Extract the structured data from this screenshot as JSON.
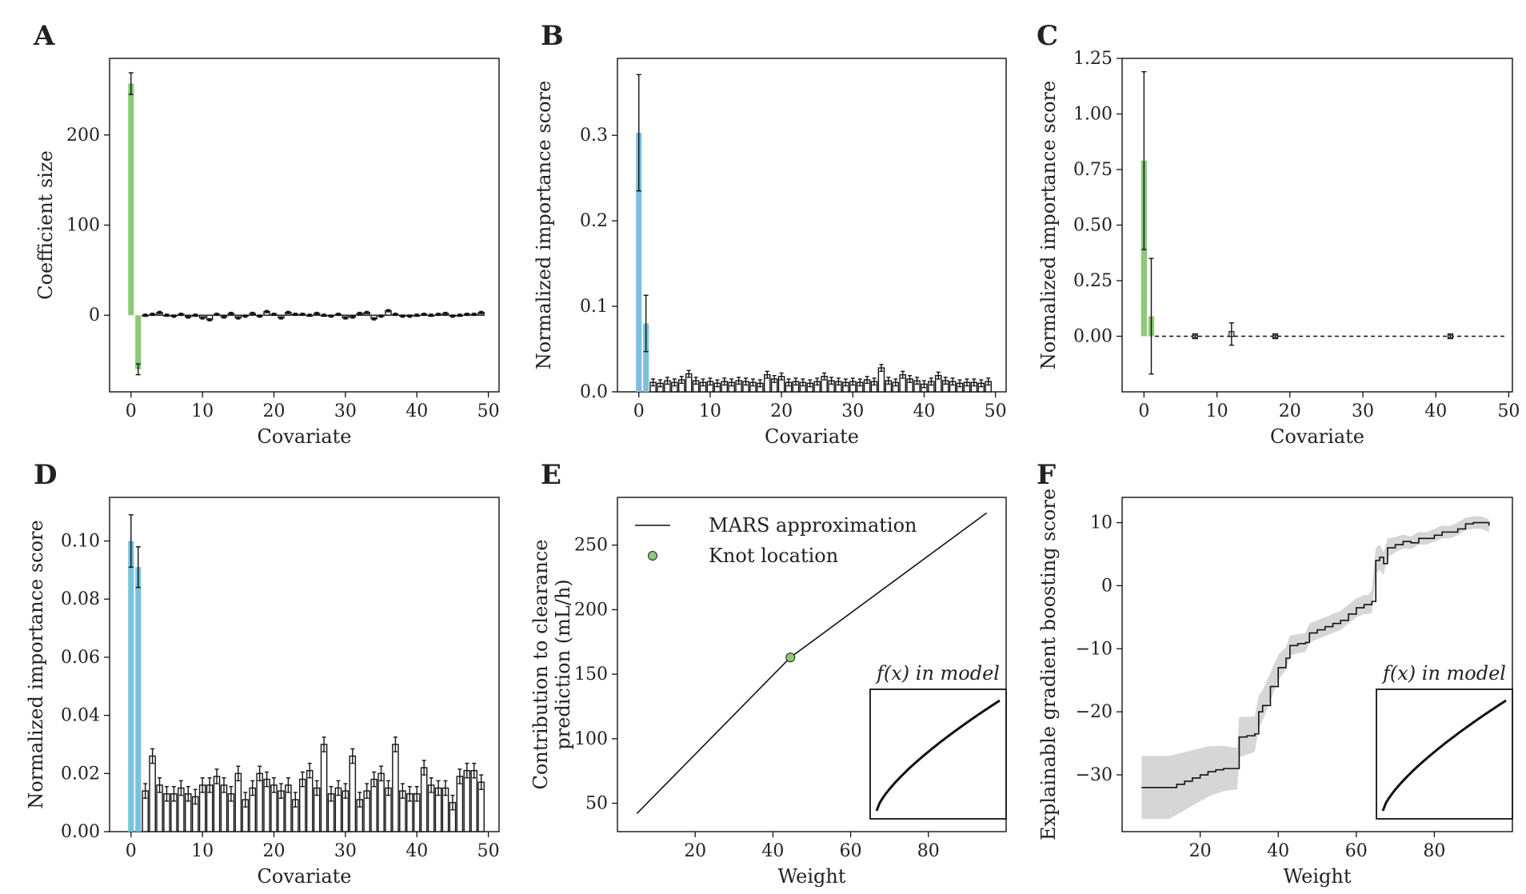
{
  "colors": {
    "green": "#8cc97a",
    "blue": "#7ac1dc",
    "ink": "#111111",
    "band": "#d6d6d6"
  },
  "inset_label": "f(x) in model",
  "chart_data": [
    {
      "panel": "A",
      "type": "bar",
      "xlabel": "Covariate",
      "ylabel": "Coefficient size",
      "xlim": [
        -3,
        51.5
      ],
      "ylim": [
        -85,
        285
      ],
      "xticks": [
        0,
        10,
        20,
        30,
        40,
        50
      ],
      "yticks": [
        0,
        100,
        200
      ],
      "highlight_color": "green",
      "highlight": [
        {
          "x": 0,
          "value": 257,
          "err": 12
        },
        {
          "x": 1,
          "value": -60,
          "err": 6
        }
      ],
      "values": [
        0,
        1,
        3,
        0,
        -1,
        1,
        -2,
        0,
        -3,
        -5,
        1,
        -2,
        2,
        -3,
        -1,
        2,
        -1,
        4,
        1,
        -3,
        3,
        1,
        1,
        0,
        2,
        0,
        -1,
        1,
        -3,
        -2,
        2,
        3,
        -4,
        -1,
        5,
        1,
        -1,
        -1,
        0,
        1,
        0,
        1,
        2,
        -1,
        0,
        1,
        1,
        3
      ],
      "errors": 1.2
    },
    {
      "panel": "B",
      "type": "bar",
      "xlabel": "Covariate",
      "ylabel": "Normalized importance score",
      "xlim": [
        -3,
        51.5
      ],
      "ylim": [
        0,
        0.39
      ],
      "xticks": [
        0,
        10,
        20,
        30,
        40,
        50
      ],
      "yticks": [
        0.0,
        0.1,
        0.2,
        0.3
      ],
      "ytick_decimals": 1,
      "highlight_color": "blue",
      "highlight": [
        {
          "x": 0,
          "value": 0.303,
          "err": 0.068
        },
        {
          "x": 1,
          "value": 0.08,
          "err": 0.033
        }
      ],
      "values": [
        0.011,
        0.01,
        0.013,
        0.011,
        0.014,
        0.021,
        0.013,
        0.011,
        0.012,
        0.01,
        0.012,
        0.011,
        0.013,
        0.012,
        0.011,
        0.01,
        0.02,
        0.015,
        0.018,
        0.011,
        0.012,
        0.011,
        0.01,
        0.012,
        0.018,
        0.013,
        0.012,
        0.011,
        0.012,
        0.011,
        0.014,
        0.012,
        0.028,
        0.013,
        0.011,
        0.02,
        0.015,
        0.013,
        0.009,
        0.012,
        0.019,
        0.013,
        0.012,
        0.01,
        0.011,
        0.011,
        0.01,
        0.012
      ],
      "errors": 0.004
    },
    {
      "panel": "C",
      "type": "bar",
      "xlabel": "Covariate",
      "ylabel": "Normalized importance score",
      "xlim": [
        -3,
        50.5
      ],
      "ylim": [
        -0.25,
        1.25
      ],
      "xticks": [
        0,
        10,
        20,
        30,
        40,
        50
      ],
      "yticks": [
        0.0,
        0.25,
        0.5,
        0.75,
        1.0,
        1.25
      ],
      "ytick_decimals": 2,
      "highlight_color": "green",
      "highlight": [
        {
          "x": 0,
          "value": 0.79,
          "err": 0.4
        },
        {
          "x": 1,
          "value": 0.09,
          "err": 0.26
        }
      ],
      "dashed_zero_from": 1.5,
      "points": [
        {
          "x": 7,
          "value": 0.0,
          "err": 0.005
        },
        {
          "x": 12,
          "value": 0.01,
          "err": 0.05
        },
        {
          "x": 18,
          "value": 0.0,
          "err": 0.005
        },
        {
          "x": 42,
          "value": 0.0,
          "err": 0.005
        }
      ]
    },
    {
      "panel": "D",
      "type": "bar",
      "xlabel": "Covariate",
      "ylabel": "Normalized importance score",
      "xlim": [
        -3,
        51.5
      ],
      "ylim": [
        0,
        0.115
      ],
      "xticks": [
        0,
        10,
        20,
        30,
        40,
        50
      ],
      "yticks": [
        0.0,
        0.02,
        0.04,
        0.06,
        0.08,
        0.1
      ],
      "ytick_decimals": 2,
      "highlight_color": "blue",
      "highlight": [
        {
          "x": 0,
          "value": 0.1,
          "err": 0.009
        },
        {
          "x": 1,
          "value": 0.091,
          "err": 0.007
        }
      ],
      "values": [
        0.014,
        0.026,
        0.016,
        0.013,
        0.013,
        0.015,
        0.013,
        0.012,
        0.016,
        0.016,
        0.019,
        0.016,
        0.013,
        0.02,
        0.011,
        0.015,
        0.02,
        0.018,
        0.016,
        0.014,
        0.016,
        0.011,
        0.018,
        0.021,
        0.015,
        0.03,
        0.013,
        0.015,
        0.014,
        0.026,
        0.011,
        0.014,
        0.018,
        0.02,
        0.015,
        0.03,
        0.014,
        0.013,
        0.013,
        0.022,
        0.016,
        0.015,
        0.015,
        0.01,
        0.019,
        0.021,
        0.021,
        0.017
      ],
      "errors": 0.0025
    },
    {
      "panel": "E",
      "type": "line",
      "xlabel": "Weight",
      "ylabel_lines": [
        "Contribution to clearance",
        "prediction (mL/h)"
      ],
      "xlim": [
        0,
        100
      ],
      "ylim": [
        28,
        287
      ],
      "xticks": [
        20,
        40,
        60,
        80
      ],
      "yticks": [
        50,
        100,
        150,
        200,
        250
      ],
      "series": [
        {
          "name": "MARS approximation",
          "x": [
            5,
            44.5,
            95
          ],
          "y": [
            42,
            163,
            275
          ]
        }
      ],
      "knot": {
        "name": "Knot location",
        "x": 44.5,
        "y": 163
      },
      "legend_position": "top-left",
      "inset": {
        "label": "f(x) in model",
        "curve": "concave-increasing"
      }
    },
    {
      "panel": "F",
      "type": "line",
      "xlabel": "Weight",
      "ylabel": "Explainable gradient boosting score",
      "xlim": [
        0,
        100
      ],
      "ylim": [
        -39,
        14
      ],
      "xticks": [
        20,
        40,
        60,
        80
      ],
      "yticks": [
        -30,
        -20,
        -10,
        0,
        10
      ],
      "series": [
        {
          "name": "score",
          "x": [
            5,
            8,
            12,
            14,
            16,
            18,
            20,
            22,
            24,
            26,
            28,
            29.5,
            30,
            32,
            34,
            35,
            36,
            38,
            40,
            42,
            43,
            45,
            47,
            48,
            50,
            52,
            54,
            56,
            58,
            60,
            62,
            63,
            64,
            65,
            66,
            67,
            68,
            70,
            72,
            74,
            76,
            78,
            80,
            82,
            84,
            86,
            88,
            90,
            92,
            94
          ],
          "y": [
            -32,
            -32,
            -32,
            -31.5,
            -31,
            -30.5,
            -30,
            -29.5,
            -29.2,
            -29,
            -29,
            -29,
            -24,
            -23.8,
            -23.5,
            -20,
            -19,
            -16,
            -13,
            -11.5,
            -9.5,
            -9.2,
            -9,
            -7.5,
            -7,
            -6.5,
            -6,
            -5.5,
            -4.5,
            -3.5,
            -3,
            -3,
            -2.5,
            4,
            4.5,
            3.5,
            6,
            6.5,
            7,
            6.8,
            7.5,
            7.5,
            8,
            8.5,
            8.5,
            9,
            9.8,
            10,
            10,
            9.5
          ]
        }
      ],
      "band_halfwidth": [
        5,
        5,
        5,
        4.8,
        4.6,
        4.4,
        4.2,
        4,
        3.8,
        3.6,
        3.4,
        3.3,
        3.2,
        3,
        2.8,
        2.6,
        2.4,
        2.2,
        2,
        1.8,
        1.6,
        1.5,
        1.5,
        1.5,
        1.5,
        1.5,
        1.5,
        1.5,
        1.5,
        1.5,
        1.5,
        1.5,
        1.8,
        2,
        2,
        1.8,
        1.5,
        1.2,
        1.1,
        1,
        1,
        1,
        1,
        1,
        1,
        1,
        1,
        1,
        1,
        1
      ],
      "inset": {
        "label": "f(x) in model",
        "curve": "concave-increasing"
      }
    }
  ]
}
